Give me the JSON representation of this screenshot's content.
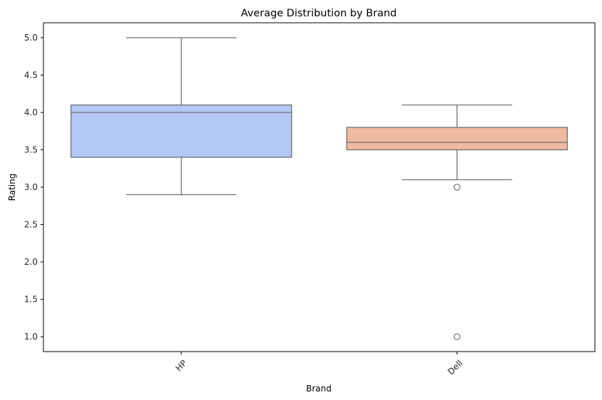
{
  "chart_data": {
    "type": "box",
    "title": "Average Distribution by Brand",
    "xlabel": "Brand",
    "ylabel": "Rating",
    "ylim": [
      0.8,
      5.2
    ],
    "yticks": [
      1.0,
      1.5,
      2.0,
      2.5,
      3.0,
      3.5,
      4.0,
      4.5,
      5.0
    ],
    "ytick_labels": [
      "1.0",
      "1.5",
      "2.0",
      "2.5",
      "3.0",
      "3.5",
      "4.0",
      "4.5",
      "5.0"
    ],
    "categories": [
      "HP",
      "Dell"
    ],
    "xtick_rotation": 45,
    "grid": false,
    "legend": false,
    "boxes": [
      {
        "category": "HP",
        "whisker_low": 2.9,
        "q1": 3.4,
        "median": 4.0,
        "q3": 4.1,
        "whisker_high": 5.0,
        "outliers": [],
        "color": "#b3c8f5"
      },
      {
        "category": "Dell",
        "whisker_low": 3.1,
        "q1": 3.5,
        "median": 3.6,
        "q3": 3.8,
        "whisker_high": 4.1,
        "outliers": [
          3.0,
          1.0
        ],
        "color": "#efb9a2"
      }
    ],
    "line_color": "#707070"
  }
}
